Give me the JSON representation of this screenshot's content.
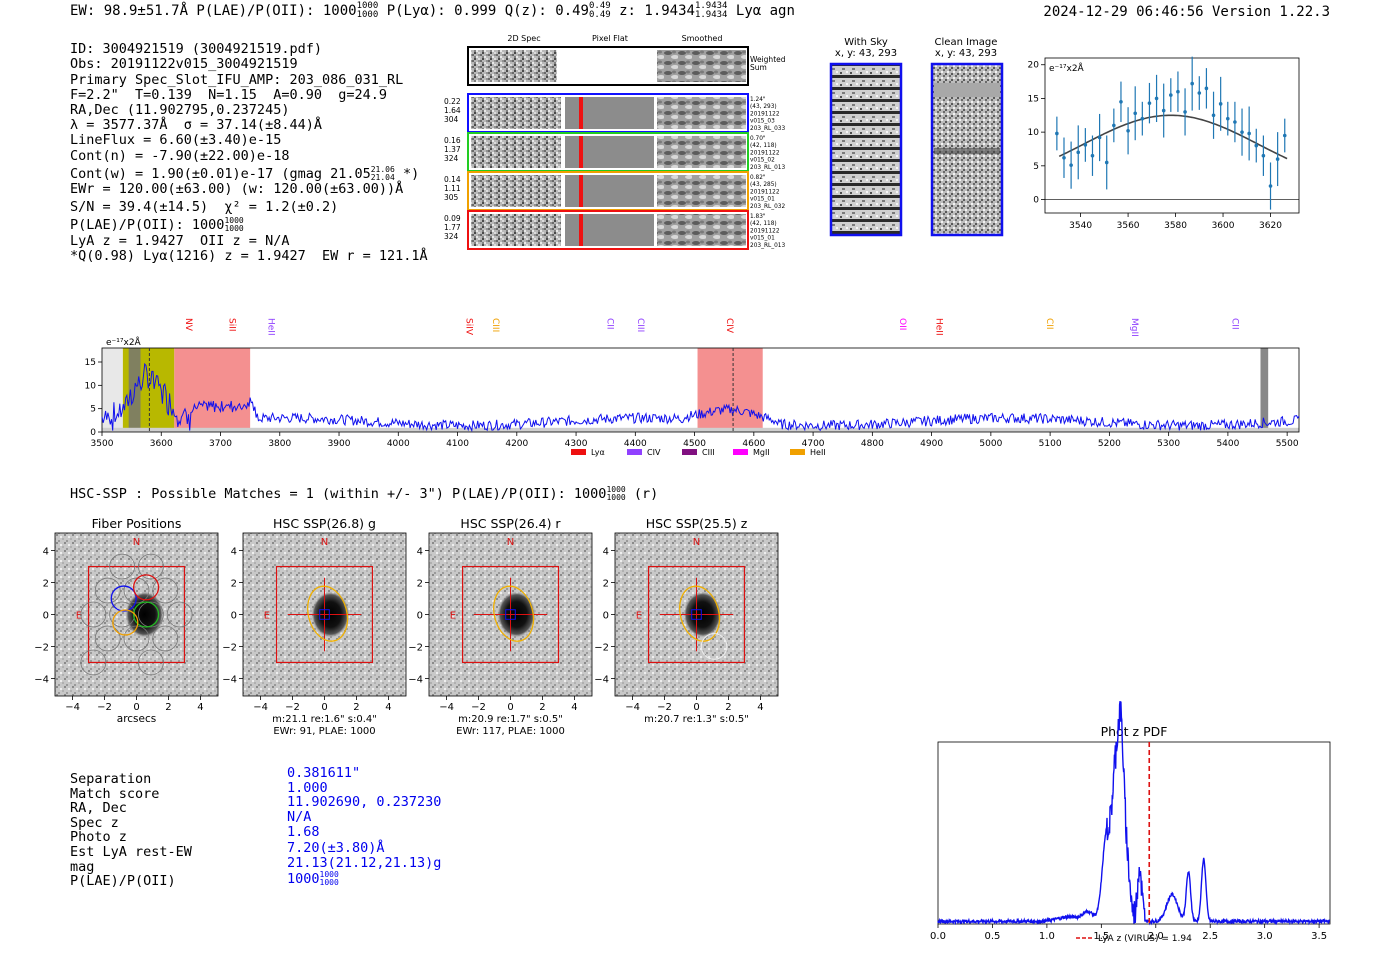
{
  "header": {
    "left": "EW: 98.9±51.7Å  P(LAE)/P(OII): 1000",
    "left_frac": [
      "1000",
      "1000"
    ],
    "p_lya": "  P(Lyα): 0.999  Q(z): 0.49",
    "q_frac": [
      "0.49",
      "0.49"
    ],
    "z": "  z: 1.9434",
    "z_frac": [
      "1.9434",
      "1.9434"
    ],
    "tail": " Lyα  agn",
    "right": "2024-12-29 06:46:56  Version 1.22.3"
  },
  "info": {
    "lines": [
      "ID: 3004921519 (3004921519.pdf)",
      "Obs: 20191122v015_3004921519",
      "Primary Spec_Slot_IFU_AMP: 203_086_031_RL",
      "F=2.2\"  T=0.139  N=1.15  A=0.90  g=24.9",
      "RA,Dec (11.902795,0.237245)",
      "λ = 3577.37Å  σ = 37.14(±8.44)Å",
      "LineFlux = 6.60(±3.40)e-15",
      "Cont(n) = -7.90(±22.00)e-18"
    ],
    "contw": "Cont(w) = 1.90(±0.01)e-17 (gmag 21.05",
    "contw_frac": [
      "21.06",
      "21.04"
    ],
    "contw_tail": " *)",
    "ewr": "EWr = 120.00(±63.00) (w: 120.00(±63.00))Å",
    "sn": "S/N = 39.4(±14.5)  χ² = 1.2(±0.2)",
    "plae": "P(LAE)/P(OII): 1000",
    "plae_frac": [
      "1000",
      "1000"
    ],
    "lya": "LyA z = 1.9427  OII z = N/A",
    "q": "*Q(0.98) Lyα(1216) z = 1.9427  EW r = 121.1Å"
  },
  "spec2d": {
    "col_titles": [
      "2D Spec",
      "Pixel Flat",
      "Smoothed"
    ],
    "weighted_label": [
      "Weighted",
      "Sum"
    ],
    "rows": [
      {
        "left": [
          "0.22",
          "1.64",
          "304"
        ],
        "right": [
          "1.24\"",
          "(43, 293)",
          "20191122",
          "v015_03",
          "203_RL_033"
        ],
        "color": "#1010ff"
      },
      {
        "left": [
          "0.16",
          "1.37",
          "324"
        ],
        "right": [
          "0.70\"",
          "(42, 118)",
          "20191122",
          "v015_02",
          "203_RL_013"
        ],
        "color": "#22cc22"
      },
      {
        "left": [
          "0.14",
          "1.11",
          "305"
        ],
        "right": [
          "0.82\"",
          "(43, 285)",
          "20191122",
          "v015_01",
          "203_RL_032"
        ],
        "color": "#f0a000"
      },
      {
        "left": [
          "0.09",
          "1.77",
          "324"
        ],
        "right": [
          "1.83\"",
          "(42, 118)",
          "20191122",
          "v015_01",
          "203_RL_013"
        ],
        "color": "#ee1010"
      }
    ]
  },
  "cutouts": {
    "with_sky": [
      "With Sky",
      "x, y: 43, 293"
    ],
    "clean": [
      "Clean Image",
      "x, y: 43, 293"
    ]
  },
  "zoom_chart": {
    "unit_label": "e⁻¹⁷x2Å",
    "xticks": [
      "3540",
      "3560",
      "3580",
      "3600",
      "3620"
    ],
    "yticks": [
      "0",
      "5",
      "10",
      "15",
      "20"
    ]
  },
  "spectrum": {
    "unit_label": "e⁻¹⁷x2Å",
    "line_labels": [
      {
        "t": "NV",
        "x": 3647,
        "c": "#ee1010"
      },
      {
        "t": "SiII",
        "x": 3720,
        "c": "#ee1010"
      },
      {
        "t": "HeII",
        "x": 3786,
        "c": "#9040ff"
      },
      {
        "t": "SiIV",
        "x": 4120,
        "c": "#ee1010"
      },
      {
        "t": "CIII",
        "x": 4165,
        "c": "#f0a000"
      },
      {
        "t": "CII",
        "x": 4358,
        "c": "#9040ff"
      },
      {
        "t": "CIII",
        "x": 4410,
        "c": "#9040ff"
      },
      {
        "t": "CIV",
        "x": 4560,
        "c": "#ee1010"
      },
      {
        "t": "OII",
        "x": 4852,
        "c": "#ff00ff"
      },
      {
        "t": "HeII",
        "x": 4913,
        "c": "#ee1010"
      },
      {
        "t": "CII",
        "x": 5100,
        "c": "#f0a000"
      },
      {
        "t": "MgII",
        "x": 5243,
        "c": "#9040ff"
      },
      {
        "t": "CII",
        "x": 5413,
        "c": "#9040ff"
      }
    ],
    "xticks": [
      "3500",
      "3600",
      "3700",
      "3800",
      "3900",
      "4000",
      "4100",
      "4200",
      "4300",
      "4400",
      "4500",
      "4600",
      "4700",
      "4800",
      "4900",
      "5000",
      "5100",
      "5200",
      "5300",
      "5400",
      "5500"
    ],
    "yticks": [
      "0",
      "5",
      "10",
      "15"
    ],
    "legend": [
      {
        "label": "Lyα",
        "color": "#ee1010"
      },
      {
        "label": "CIV",
        "color": "#9040ff"
      },
      {
        "label": "CIII",
        "color": "#801080"
      },
      {
        "label": "MgII",
        "color": "#ff00ff"
      },
      {
        "label": "HeII",
        "color": "#f0a000"
      }
    ]
  },
  "hsc": {
    "headline": "HSC-SSP : Possible Matches = 1 (within +/- 3\")  P(LAE)/P(OII): 1000",
    "headline_frac": [
      "1000",
      "1000"
    ],
    "headline_tail": " (r)",
    "panels": [
      {
        "title": "Fiber Positions",
        "xlabel": "arcsecs",
        "cap1": "",
        "cap2": ""
      },
      {
        "title": "HSC SSP(26.8) g",
        "xlabel": "",
        "cap1": "m:21.1  re:1.6\"  s:0.4\"",
        "cap2": "EWr: 91, PLAE: 1000"
      },
      {
        "title": "HSC SSP(26.4) r",
        "xlabel": "",
        "cap1": "m:20.9  re:1.7\"  s:0.5\"",
        "cap2": "EWr: 117, PLAE: 1000"
      },
      {
        "title": "HSC SSP(25.5) z",
        "xlabel": "",
        "cap1": "m:20.7  re:1.3\"  s:0.5\"",
        "cap2": ""
      }
    ],
    "ticks": [
      "−4",
      "−2",
      "0",
      "2",
      "4"
    ],
    "n_label": "N",
    "e_label": "E"
  },
  "match": {
    "rows": [
      {
        "label": "Separation",
        "value": "0.381611\""
      },
      {
        "label": "Match score",
        "value": "1.000"
      },
      {
        "label": "RA, Dec",
        "value": "11.902690, 0.237230"
      },
      {
        "label": "Spec z",
        "value": "N/A"
      },
      {
        "label": "Photo z",
        "value": "1.68"
      },
      {
        "label": "Est LyA rest-EW",
        "value": "7.20(±3.80)Å"
      },
      {
        "label": "mag",
        "value": "21.13(21.12,21.13)g"
      },
      {
        "label": "P(LAE)/P(OII)",
        "value": "1000"
      }
    ],
    "plae_frac": [
      "1000",
      "1000"
    ]
  },
  "chart_data": [
    {
      "type": "scatter",
      "title": "",
      "ylabel": "e⁻¹⁷x2Å",
      "xlim": [
        3525,
        3632
      ],
      "ylim": [
        -2,
        21
      ],
      "x": [
        3530,
        3533,
        3536,
        3539,
        3542,
        3545,
        3548,
        3551,
        3554,
        3557,
        3560,
        3563,
        3566,
        3569,
        3572,
        3575,
        3578,
        3581,
        3584,
        3587,
        3590,
        3593,
        3596,
        3599,
        3602,
        3605,
        3608,
        3611,
        3614,
        3617,
        3620,
        3623,
        3626
      ],
      "y": [
        9.8,
        6.2,
        5.1,
        7.0,
        8.1,
        6.5,
        9.2,
        5.5,
        11.0,
        14.5,
        10.2,
        12.8,
        12.0,
        14.3,
        15.0,
        13.2,
        15.5,
        16.0,
        13.0,
        17.2,
        15.8,
        16.5,
        12.5,
        14.2,
        12.0,
        11.5,
        10.0,
        9.8,
        8.0,
        6.5,
        2.0,
        6.0,
        9.5
      ],
      "fit": "gaussian",
      "color": "#1f77b4"
    },
    {
      "type": "line",
      "title": "",
      "ylabel": "e⁻¹⁷x2Å",
      "xlim": [
        3500,
        5520
      ],
      "ylim": [
        0,
        18
      ],
      "series": [
        {
          "values_generated": "noise spectrum",
          "peak_x": 3577,
          "peak_y": 17
        }
      ],
      "shaded": [
        {
          "x": [
            3535,
            3622
          ],
          "color": "#b8b800"
        },
        {
          "x": [
            3622,
            3750
          ],
          "color": "#f08080"
        },
        {
          "x": [
            4505,
            4615
          ],
          "color": "#f08080"
        }
      ],
      "dashed_x": [
        3580,
        4565
      ]
    },
    {
      "type": "line",
      "title": "Phot z PDF",
      "xlim": [
        0,
        3.6
      ],
      "xticks": [
        "0.0",
        "0.5",
        "1.0",
        "1.5",
        "2.0",
        "2.5",
        "3.0",
        "3.5"
      ],
      "marker_x": 1.94,
      "legend": "LyA z (VIRUS) = 1.94"
    }
  ],
  "photz": {
    "title": "Phot z PDF",
    "legend": "LyA z (VIRUS) = 1.94"
  }
}
